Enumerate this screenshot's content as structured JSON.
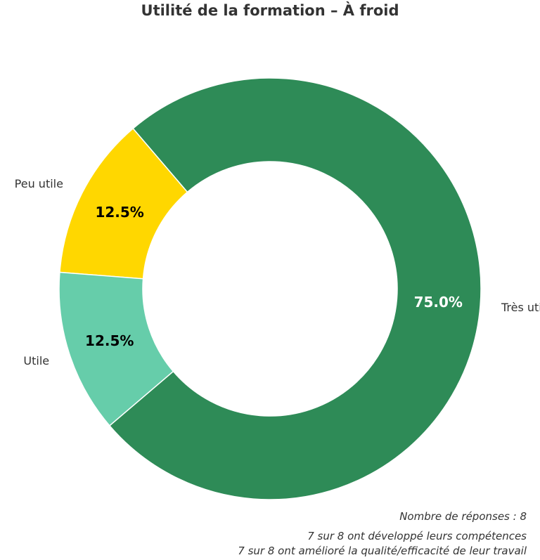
{
  "chart_data": {
    "type": "pie",
    "title": "Utilité de la formation – À froid",
    "categories": [
      "Très utile",
      "Peu utile",
      "Utile"
    ],
    "values": [
      75.0,
      12.5,
      12.5
    ],
    "labels": [
      "75.0%",
      "12.5%",
      "12.5%"
    ],
    "colors": [
      "#2e8b57",
      "#ffd700",
      "#66cdaa"
    ],
    "label_colors": [
      "#ffffff",
      "#000000",
      "#000000"
    ],
    "donut": true
  },
  "notes": [
    "Nombre de réponses : 8",
    "7 sur 8 ont développé leurs compétences",
    "7 sur 8 ont amélioré la qualité/efficacité de leur travail"
  ]
}
